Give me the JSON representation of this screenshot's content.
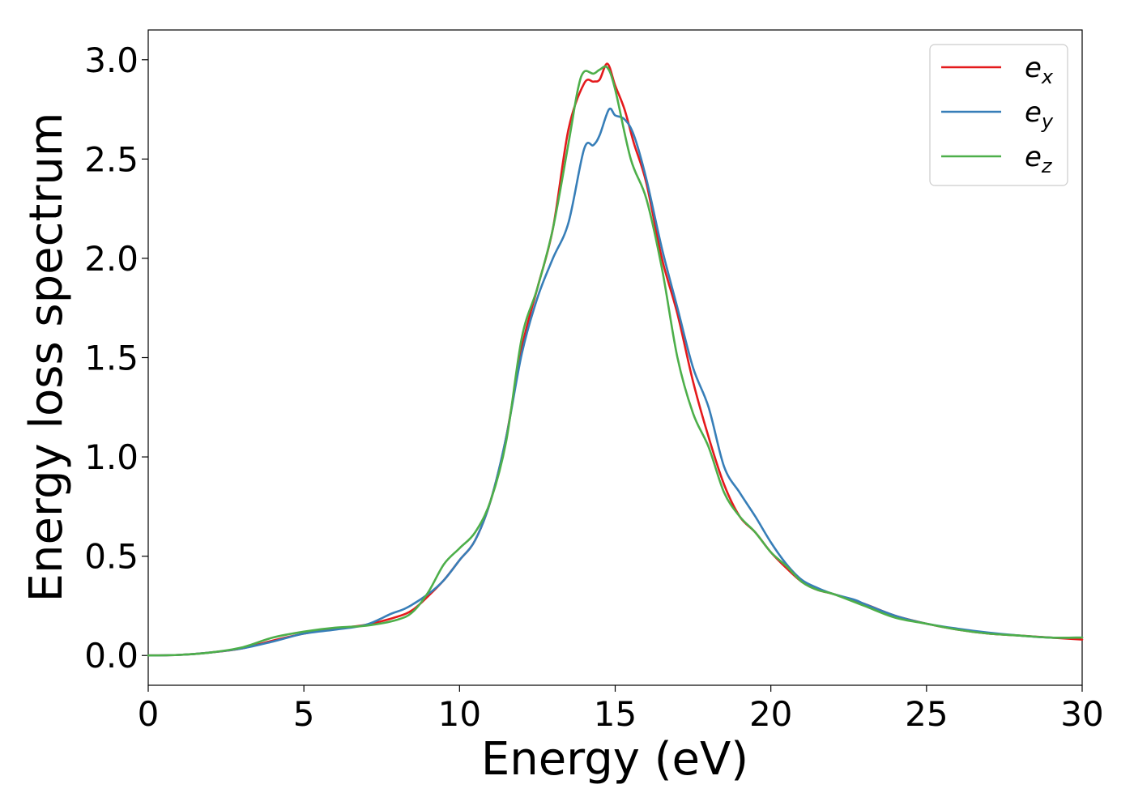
{
  "chart_data": {
    "type": "line",
    "title": "",
    "xlabel": "Energy (eV)",
    "ylabel": "Energy loss spectrum",
    "xlim": [
      0,
      30
    ],
    "ylim": [
      -0.15,
      3.15
    ],
    "xticks": [
      0,
      5,
      10,
      15,
      20,
      25,
      30
    ],
    "xtick_labels": [
      "0",
      "5",
      "10",
      "15",
      "20",
      "25",
      "30"
    ],
    "yticks": [
      0.0,
      0.5,
      1.0,
      1.5,
      2.0,
      2.5,
      3.0
    ],
    "ytick_labels": [
      "0.0",
      "0.5",
      "1.0",
      "1.5",
      "2.0",
      "2.5",
      "3.0"
    ],
    "grid": false,
    "legend_position": "top-right",
    "series": [
      {
        "name": "e_x",
        "label_base": "e",
        "label_sub": "x",
        "color": "#e41a1c",
        "x": [
          0,
          1,
          2,
          3,
          4,
          5,
          6,
          7,
          8,
          8.5,
          9,
          9.5,
          10,
          10.5,
          11,
          11.5,
          12,
          12.5,
          13,
          13.5,
          14,
          14.3,
          14.5,
          14.75,
          15,
          15.3,
          15.6,
          16,
          16.5,
          17,
          17.5,
          18,
          18.5,
          19,
          19.5,
          20,
          20.5,
          21,
          21.5,
          22,
          23,
          24,
          25,
          26,
          27,
          28,
          29,
          30
        ],
        "y": [
          0,
          0.003,
          0.015,
          0.035,
          0.075,
          0.11,
          0.135,
          0.155,
          0.195,
          0.23,
          0.3,
          0.38,
          0.48,
          0.58,
          0.78,
          1.1,
          1.55,
          1.85,
          2.15,
          2.65,
          2.88,
          2.89,
          2.9,
          2.98,
          2.87,
          2.75,
          2.58,
          2.38,
          2.0,
          1.72,
          1.38,
          1.1,
          0.86,
          0.7,
          0.62,
          0.52,
          0.44,
          0.37,
          0.33,
          0.31,
          0.26,
          0.2,
          0.16,
          0.13,
          0.11,
          0.1,
          0.09,
          0.08
        ]
      },
      {
        "name": "e_y",
        "label_base": "e",
        "label_sub": "y",
        "color": "#377eb8",
        "x": [
          0,
          1,
          2,
          3,
          4,
          5,
          6,
          7,
          7.8,
          8.3,
          9,
          9.5,
          10,
          10.5,
          11,
          11.5,
          12,
          12.5,
          13,
          13.5,
          14,
          14.3,
          14.5,
          14.8,
          15,
          15.3,
          15.6,
          16,
          16.5,
          17,
          17.5,
          18,
          18.5,
          19,
          19.5,
          20,
          20.5,
          21,
          21.5,
          22,
          22.7,
          23,
          24,
          25,
          26,
          27,
          28,
          29,
          30
        ],
        "y": [
          0,
          0.003,
          0.015,
          0.035,
          0.07,
          0.11,
          0.13,
          0.155,
          0.21,
          0.24,
          0.31,
          0.38,
          0.48,
          0.58,
          0.78,
          1.1,
          1.52,
          1.8,
          2.0,
          2.18,
          2.55,
          2.57,
          2.62,
          2.75,
          2.72,
          2.7,
          2.62,
          2.4,
          2.05,
          1.75,
          1.45,
          1.25,
          0.95,
          0.82,
          0.7,
          0.57,
          0.46,
          0.38,
          0.34,
          0.31,
          0.28,
          0.26,
          0.2,
          0.16,
          0.135,
          0.115,
          0.1,
          0.09,
          0.09
        ]
      },
      {
        "name": "e_z",
        "label_base": "e",
        "label_sub": "z",
        "color": "#4daf4a",
        "x": [
          0,
          1,
          2,
          3,
          4,
          5,
          6,
          7,
          8,
          8.5,
          9,
          9.5,
          10,
          10.5,
          11,
          11.5,
          12,
          12.5,
          13,
          13.5,
          13.8,
          14,
          14.3,
          14.5,
          14.75,
          15,
          15.5,
          16,
          16.5,
          17,
          17.5,
          18,
          18.5,
          19,
          19.5,
          20,
          20.5,
          21,
          21.5,
          22,
          23,
          24,
          25,
          26,
          27,
          28,
          29,
          30
        ],
        "y": [
          0,
          0.003,
          0.015,
          0.04,
          0.09,
          0.12,
          0.14,
          0.15,
          0.18,
          0.22,
          0.32,
          0.46,
          0.54,
          0.62,
          0.78,
          1.08,
          1.6,
          1.85,
          2.15,
          2.58,
          2.85,
          2.94,
          2.93,
          2.95,
          2.96,
          2.85,
          2.5,
          2.3,
          1.95,
          1.5,
          1.22,
          1.05,
          0.82,
          0.7,
          0.62,
          0.52,
          0.45,
          0.37,
          0.33,
          0.31,
          0.25,
          0.19,
          0.16,
          0.13,
          0.11,
          0.1,
          0.09,
          0.09
        ]
      }
    ]
  }
}
